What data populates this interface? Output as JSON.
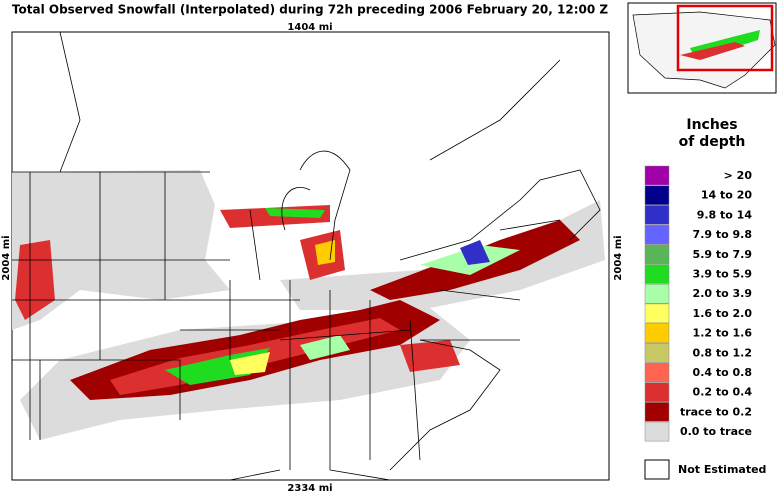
{
  "title": "Total Observed Snowfall (Interpolated) during 72h preceding 2006 February 20, 12:00 Z",
  "map": {
    "top_scale": "1404 mi",
    "bottom_scale": "2334 mi",
    "left_scale": "2004 mi",
    "right_scale": "2004 mi"
  },
  "legend": {
    "title_lines": [
      "Inches",
      "of depth"
    ],
    "items": [
      {
        "label": "> 20",
        "color": "#a000a8"
      },
      {
        "label": "14 to 20",
        "color": "#00008b"
      },
      {
        "label": "9.8 to 14",
        "color": "#3030c8"
      },
      {
        "label": "7.9 to 9.8",
        "color": "#6464ff"
      },
      {
        "label": "5.9 to 7.9",
        "color": "#5ab45a"
      },
      {
        "label": "3.9 to 5.9",
        "color": "#20dc20"
      },
      {
        "label": "2.0 to 3.9",
        "color": "#a8ffa8"
      },
      {
        "label": "1.6 to 2.0",
        "color": "#ffff60"
      },
      {
        "label": "1.2 to 1.6",
        "color": "#ffcc00"
      },
      {
        "label": "0.8 to 1.2",
        "color": "#c8c864"
      },
      {
        "label": "0.4 to 0.8",
        "color": "#ff6450"
      },
      {
        "label": "0.2 to 0.4",
        "color": "#dc3030"
      },
      {
        "label": "trace to 0.2",
        "color": "#a00000"
      },
      {
        "label": "0.0 to trace",
        "color": "#dcdcdc"
      }
    ],
    "not_estimated": {
      "label": "Not Estimated",
      "color": "#ffffff"
    }
  }
}
